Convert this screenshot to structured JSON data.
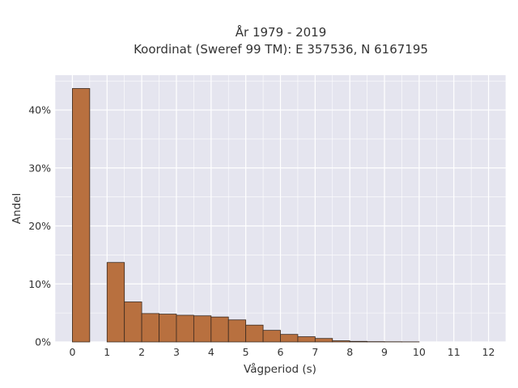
{
  "chart_data": {
    "type": "bar",
    "title_line1": "År 1979 - 2019",
    "title_line2": "Koordinat (Sweref 99 TM): E 357536, N 6167195",
    "xlabel": "Vågperiod (s)",
    "ylabel": "Andel",
    "xlim": [
      -0.5,
      12.5
    ],
    "ylim": [
      0,
      0.46
    ],
    "bin_width": 0.5,
    "x_ticks": [
      0,
      1,
      2,
      3,
      4,
      5,
      6,
      7,
      8,
      9,
      10,
      11,
      12
    ],
    "x_tick_labels": [
      "0",
      "1",
      "2",
      "3",
      "4",
      "5",
      "6",
      "7",
      "8",
      "9",
      "10",
      "11",
      "12"
    ],
    "y_ticks": [
      0,
      0.1,
      0.2,
      0.3,
      0.4
    ],
    "y_tick_labels": [
      "0%",
      "10%",
      "20%",
      "30%",
      "40%"
    ],
    "grid": true,
    "bar_color": "#b8703f",
    "bar_edge_color": "#3a2a20",
    "bins": [
      {
        "x0": 0.0,
        "x1": 0.5,
        "value": 0.437
      },
      {
        "x0": 1.0,
        "x1": 1.5,
        "value": 0.137
      },
      {
        "x0": 1.5,
        "x1": 2.0,
        "value": 0.069
      },
      {
        "x0": 2.0,
        "x1": 2.5,
        "value": 0.049
      },
      {
        "x0": 2.5,
        "x1": 3.0,
        "value": 0.048
      },
      {
        "x0": 3.0,
        "x1": 3.5,
        "value": 0.046
      },
      {
        "x0": 3.5,
        "x1": 4.0,
        "value": 0.045
      },
      {
        "x0": 4.0,
        "x1": 4.5,
        "value": 0.043
      },
      {
        "x0": 4.5,
        "x1": 5.0,
        "value": 0.038
      },
      {
        "x0": 5.0,
        "x1": 5.5,
        "value": 0.029
      },
      {
        "x0": 5.5,
        "x1": 6.0,
        "value": 0.02
      },
      {
        "x0": 6.0,
        "x1": 6.5,
        "value": 0.013
      },
      {
        "x0": 6.5,
        "x1": 7.0,
        "value": 0.009
      },
      {
        "x0": 7.0,
        "x1": 7.5,
        "value": 0.006
      },
      {
        "x0": 7.5,
        "x1": 8.0,
        "value": 0.002
      },
      {
        "x0": 8.0,
        "x1": 8.5,
        "value": 0.001
      },
      {
        "x0": 8.5,
        "x1": 9.0,
        "value": 0.0005
      },
      {
        "x0": 9.0,
        "x1": 9.5,
        "value": 0.0003
      },
      {
        "x0": 9.5,
        "x1": 10.0,
        "value": 0.0002
      }
    ]
  }
}
